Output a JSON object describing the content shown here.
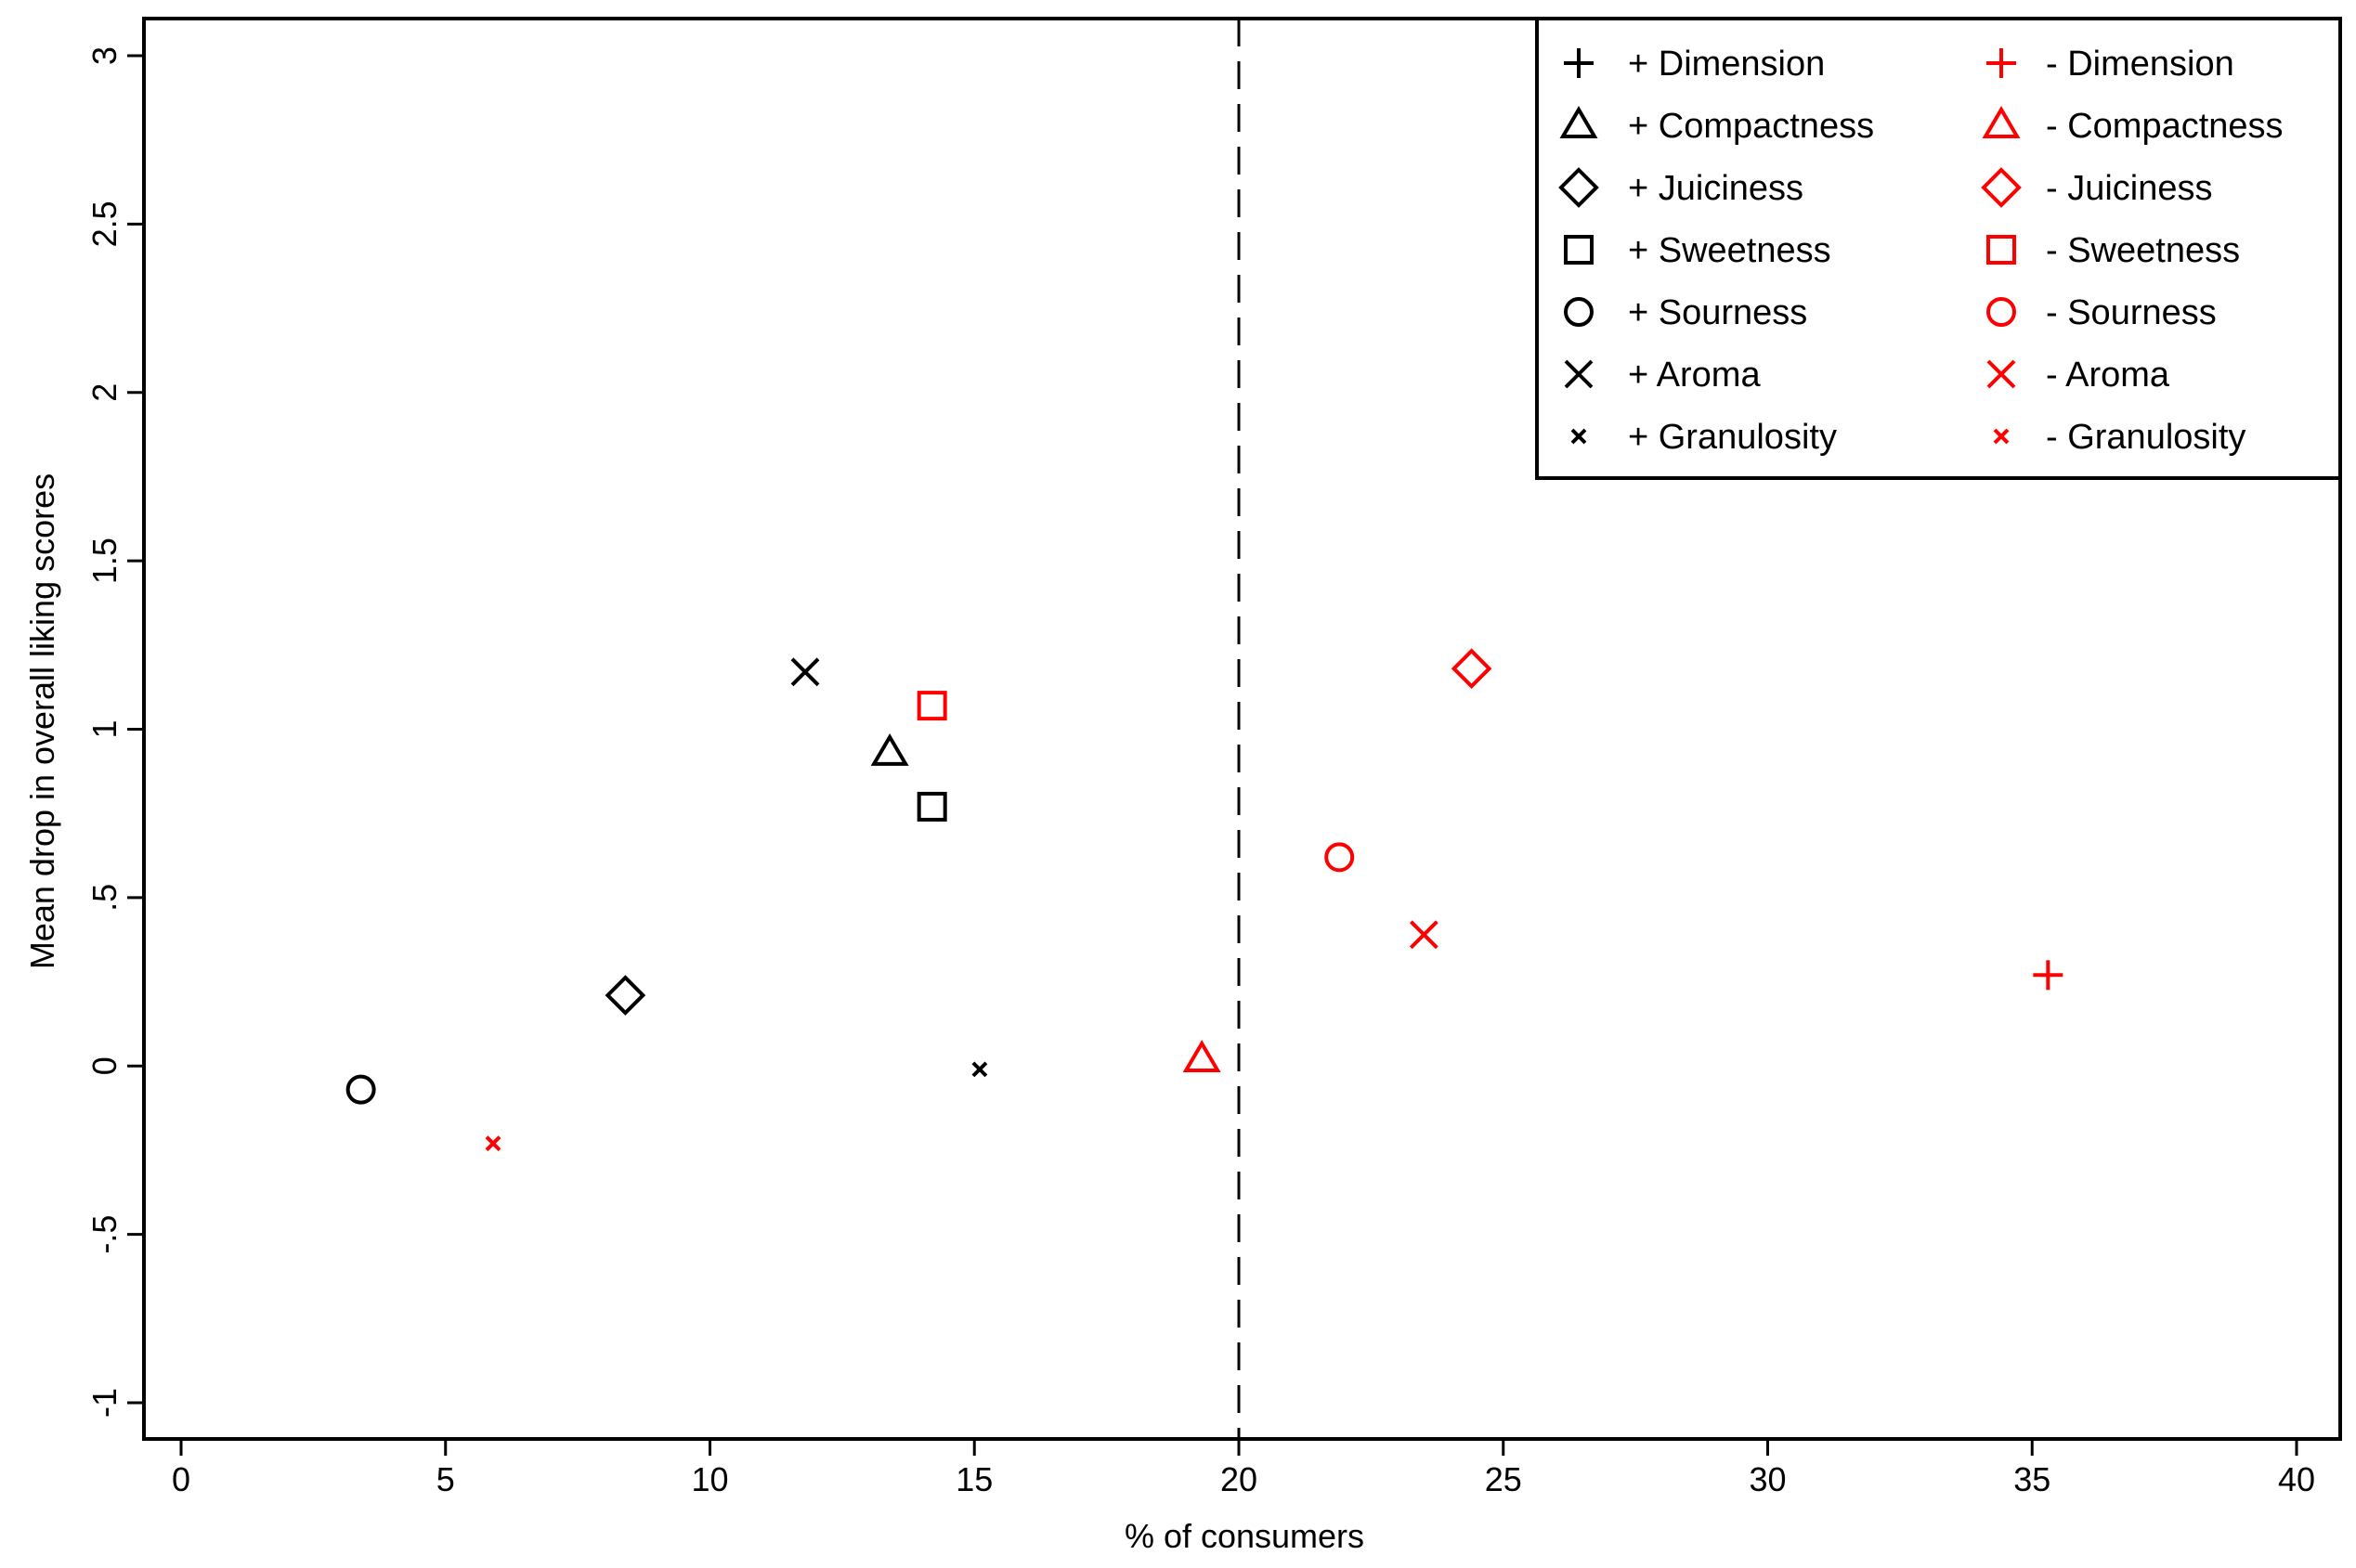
{
  "chart_data": {
    "type": "scatter",
    "title": "",
    "xlabel": "% of consumers",
    "ylabel": "Mean drop in overall liking scores",
    "xlim": [
      0,
      40
    ],
    "ylim": [
      -1,
      3
    ],
    "x_ticks": [
      0,
      5,
      10,
      15,
      20,
      25,
      30,
      35,
      40
    ],
    "x_tick_labels": [
      "0",
      "5",
      "10",
      "15",
      "20",
      "25",
      "30",
      "35",
      "40"
    ],
    "y_ticks": [
      -1,
      -0.5,
      0,
      0.5,
      1,
      1.5,
      2,
      2.5,
      3
    ],
    "y_tick_labels": [
      "-1",
      "-.5",
      "0",
      ".5",
      "1",
      "1.5",
      "2",
      "2.5",
      "3"
    ],
    "reference_line": {
      "x": 20,
      "style": "dashed"
    },
    "grid": false,
    "legend_position": "top-right",
    "colors": {
      "plus": "#000000",
      "minus": "#ff0000"
    },
    "series": [
      {
        "name": "+ Dimension",
        "marker": "plus",
        "color": "#000000",
        "x": null,
        "y": null
      },
      {
        "name": "+ Compactness",
        "marker": "triangle",
        "color": "#000000",
        "x": 13.4,
        "y": 0.93
      },
      {
        "name": "+ Juiciness",
        "marker": "diamond",
        "color": "#000000",
        "x": 8.4,
        "y": 0.21
      },
      {
        "name": "+ Sweetness",
        "marker": "square",
        "color": "#000000",
        "x": 14.2,
        "y": 0.77
      },
      {
        "name": "+ Sourness",
        "marker": "circle",
        "color": "#000000",
        "x": 3.4,
        "y": -0.07
      },
      {
        "name": "+ Aroma",
        "marker": "x",
        "color": "#000000",
        "x": 11.8,
        "y": 1.17
      },
      {
        "name": "+ Granulosity",
        "marker": "small-x",
        "color": "#000000",
        "x": 15.1,
        "y": -0.01
      },
      {
        "name": "- Dimension",
        "marker": "plus",
        "color": "#ff0000",
        "x": 35.3,
        "y": 0.27
      },
      {
        "name": "- Compactness",
        "marker": "triangle",
        "color": "#ff0000",
        "x": 19.3,
        "y": 0.02
      },
      {
        "name": "- Juiciness",
        "marker": "diamond",
        "color": "#ff0000",
        "x": 24.4,
        "y": 1.18
      },
      {
        "name": "- Sweetness",
        "marker": "square",
        "color": "#ff0000",
        "x": 14.2,
        "y": 1.07
      },
      {
        "name": "- Sourness",
        "marker": "circle",
        "color": "#ff0000",
        "x": 21.9,
        "y": 0.62
      },
      {
        "name": "- Aroma",
        "marker": "x",
        "color": "#ff0000",
        "x": 23.5,
        "y": 0.39
      },
      {
        "name": "- Granulosity",
        "marker": "small-x",
        "color": "#ff0000",
        "x": 5.9,
        "y": -0.23
      }
    ]
  }
}
